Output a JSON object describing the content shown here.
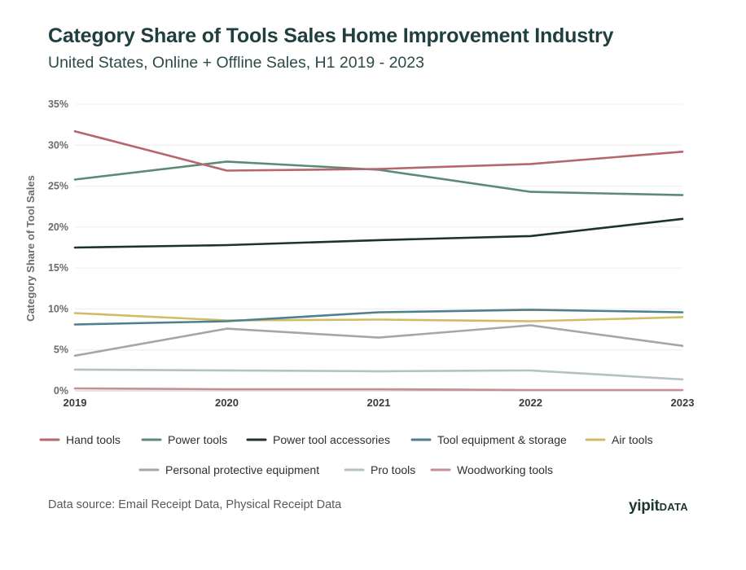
{
  "header": {
    "title": "Category Share of Tools Sales Home Improvement Industry",
    "subtitle": "United States, Online + Offline Sales, H1 2019 - 2023"
  },
  "footer": {
    "source": "Data source: Email Receipt Data, Physical Receipt Data",
    "brand_main": "yipit",
    "brand_suffix": "DATA"
  },
  "chart_data": {
    "type": "line",
    "title": "Category Share of Tools Sales Home Improvement Industry",
    "subtitle": "United States, Online + Offline Sales, H1 2019 - 2023",
    "xlabel": "",
    "ylabel": "Category Share of Tool Sales",
    "categories": [
      "2019",
      "2020",
      "2021",
      "2022",
      "2023"
    ],
    "y_ticks": [
      "0%",
      "5%",
      "10%",
      "15%",
      "20%",
      "25%",
      "30%",
      "35%"
    ],
    "ylim": [
      0,
      35
    ],
    "grid": true,
    "legend_position": "bottom",
    "series": [
      {
        "name": "Hand tools",
        "color": "#b5666e",
        "values": [
          31.7,
          26.9,
          27.1,
          27.7,
          29.2
        ]
      },
      {
        "name": "Power tools",
        "color": "#5c8a76",
        "values": [
          25.8,
          28.0,
          27.0,
          24.3,
          23.9
        ]
      },
      {
        "name": "Power tool accessories",
        "color": "#1c3331",
        "values": [
          17.5,
          17.8,
          18.4,
          18.9,
          21.0
        ]
      },
      {
        "name": "Tool equipment & storage",
        "color": "#4f7f8c",
        "values": [
          8.1,
          8.5,
          9.6,
          9.9,
          9.6
        ]
      },
      {
        "name": "Air tools",
        "color": "#d2bb66",
        "values": [
          9.5,
          8.6,
          8.7,
          8.5,
          9.0
        ]
      },
      {
        "name": "Personal protective equipment",
        "color": "#a6a6a6",
        "values": [
          4.3,
          7.6,
          6.5,
          8.0,
          5.5
        ]
      },
      {
        "name": "Pro tools",
        "color": "#b4c2c0",
        "values": [
          2.6,
          2.5,
          2.4,
          2.5,
          1.4
        ]
      },
      {
        "name": "Woodworking tools",
        "color": "#c78e96",
        "values": [
          0.3,
          0.2,
          0.2,
          0.1,
          0.1
        ]
      }
    ]
  }
}
